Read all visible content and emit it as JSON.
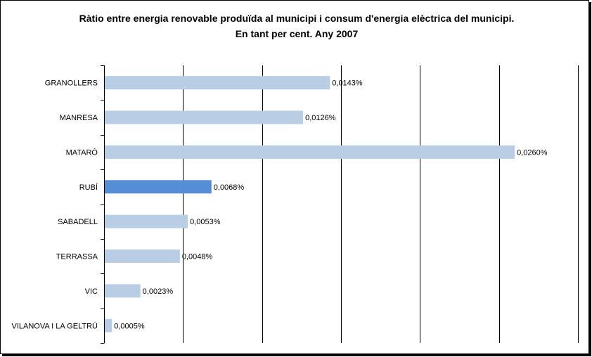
{
  "chart_data": {
    "type": "bar",
    "orientation": "horizontal",
    "title": "Ràtio entre energia renovable produïda al municipi i consum d'energia elèctrica del municipi.",
    "subtitle": "En tant per cent. Any 2007",
    "xlabel": "",
    "ylabel": "",
    "categories": [
      "GRANOLLERS",
      "MANRESA",
      "MATARÓ",
      "RUBÍ",
      "SABADELL",
      "TERRASSA",
      "VIC",
      "VILANOVA I LA GELTRÚ"
    ],
    "values": [
      0.0143,
      0.0126,
      0.026,
      0.0068,
      0.0053,
      0.0048,
      0.0023,
      0.0005
    ],
    "value_labels": [
      "0,0143%",
      "0,0126%",
      "0,0260%",
      "0,0068%",
      "0,0053%",
      "0,0048%",
      "0,0023%",
      "0,0005%"
    ],
    "xlim": [
      0,
      0.03
    ],
    "grid": true,
    "legend": "none",
    "bar_color": "#b9cde5",
    "highlight_color": "#558ed5",
    "highlight_category": "RUBÍ"
  }
}
